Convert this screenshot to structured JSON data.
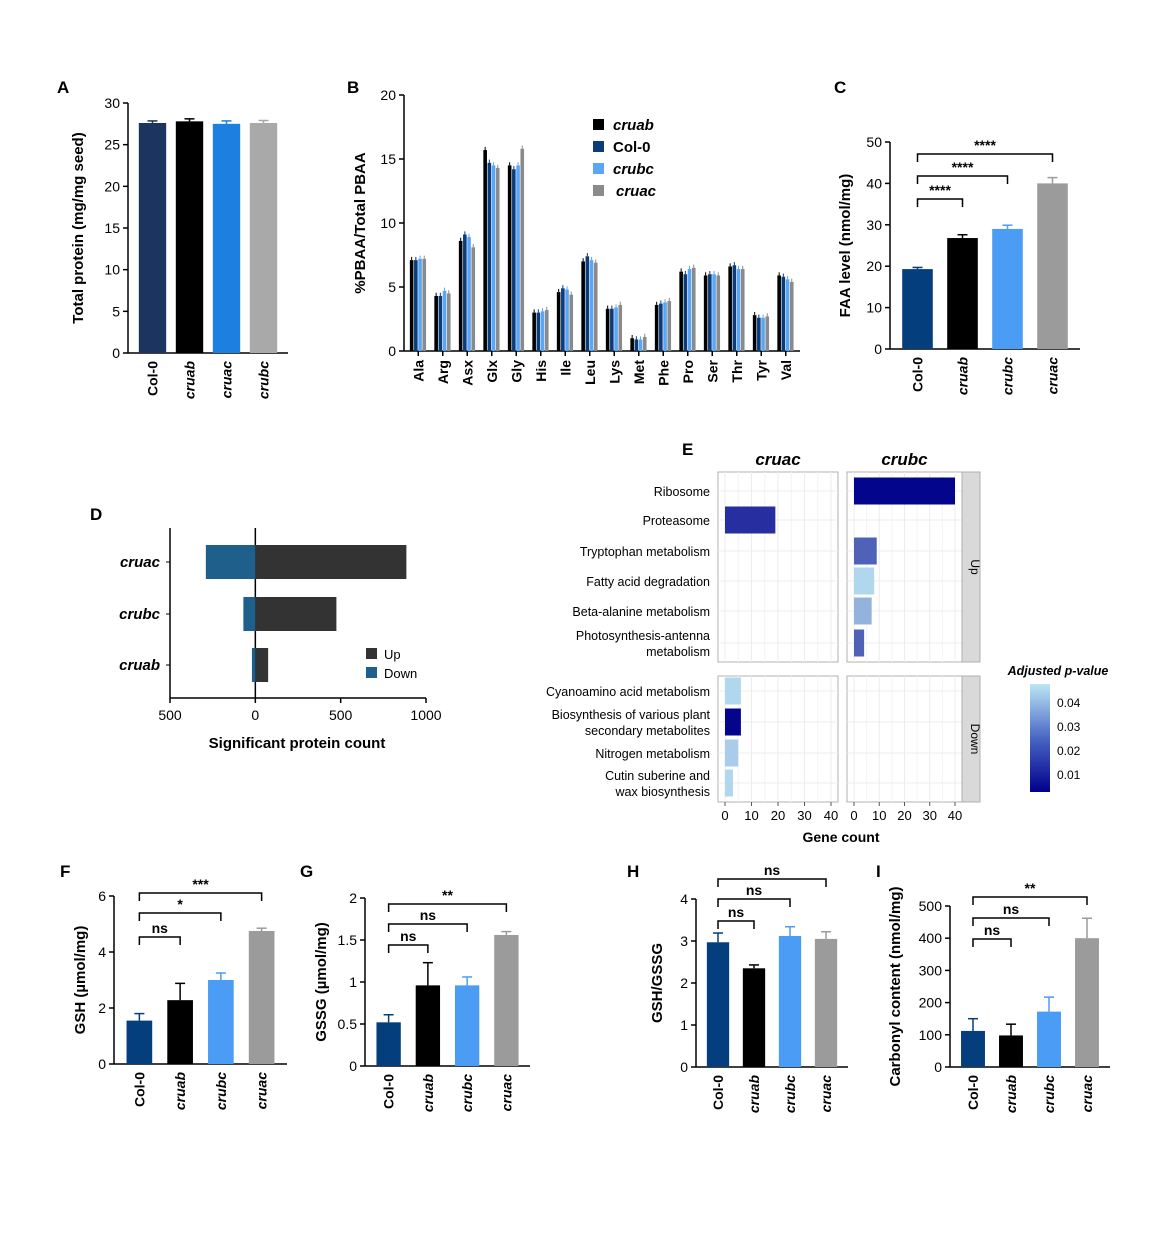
{
  "colors": {
    "Col-0": "#053e7c",
    "cruab": "#000000",
    "crubc": "#4a9cf5",
    "cruac": "#9b9b9b",
    "panelA_Col-0": "#1c355e",
    "panelA_cruac": "#1d7fe0",
    "panelA_crubc": "#a9a9a9",
    "panelB_cruab": "#000000",
    "panelB_Col-0": "#0a3b7a",
    "panelB_crubc": "#5aa6f5",
    "panelB_cruac": "#8a8a8a",
    "D_up": "#333333",
    "D_down": "#1f5f8b",
    "E_low": "#00008b",
    "E_high": "#bde6f5",
    "D_up_legend": "#333333"
  },
  "chart_data": [
    {
      "panel": "A",
      "type": "bar",
      "ylabel": "Total protein (mg/mg seed)",
      "ylim": [
        0,
        30
      ],
      "yticks": [
        0,
        5,
        10,
        15,
        20,
        25,
        30
      ],
      "categories": [
        "Col-0",
        "cruab",
        "cruac",
        "crubc"
      ],
      "values": [
        27.6,
        27.8,
        27.5,
        27.6
      ],
      "errors": [
        0.25,
        0.3,
        0.35,
        0.3
      ],
      "bar_colors": [
        "#1c355e",
        "#000000",
        "#1d7fe0",
        "#a9a9a9"
      ]
    },
    {
      "panel": "B",
      "type": "bar",
      "ylabel": "%PBAA/Total PBAA",
      "ylim": [
        0,
        20
      ],
      "yticks": [
        0,
        5,
        10,
        15,
        20
      ],
      "categories": [
        "Ala",
        "Arg",
        "Asx",
        "Glx",
        "Gly",
        "His",
        "Ile",
        "Leu",
        "Lys",
        "Met",
        "Phe",
        "Pro",
        "Ser",
        "Thr",
        "Tyr",
        "Val"
      ],
      "series": [
        {
          "name": "cruab",
          "color": "#000000",
          "values": [
            7.1,
            4.3,
            8.6,
            15.7,
            14.5,
            3.0,
            4.6,
            7.0,
            3.3,
            1.0,
            3.6,
            6.2,
            5.9,
            6.6,
            2.8,
            5.9
          ]
        },
        {
          "name": "Col-0",
          "color": "#0a3b7a",
          "values": [
            7.1,
            4.3,
            9.1,
            14.7,
            14.2,
            3.0,
            4.9,
            7.4,
            3.3,
            0.9,
            3.7,
            6.0,
            6.0,
            6.7,
            2.6,
            5.8
          ]
        },
        {
          "name": "crubc",
          "color": "#5aa6f5",
          "values": [
            7.2,
            4.7,
            8.9,
            14.5,
            14.5,
            3.1,
            4.8,
            7.1,
            3.4,
            0.9,
            3.8,
            6.4,
            6.0,
            6.4,
            2.6,
            5.6
          ]
        },
        {
          "name": "cruac",
          "color": "#8a8a8a",
          "values": [
            7.2,
            4.5,
            8.1,
            14.3,
            15.8,
            3.2,
            4.4,
            6.9,
            3.6,
            1.1,
            3.9,
            6.5,
            5.9,
            6.4,
            2.7,
            5.4
          ]
        }
      ],
      "legend": [
        "cruab",
        "Col-0",
        "crubc",
        "cruac"
      ]
    },
    {
      "panel": "C",
      "type": "bar",
      "ylabel": "FAA level (nmol/mg)",
      "ylim": [
        0,
        50
      ],
      "yticks": [
        0,
        10,
        20,
        30,
        40,
        50
      ],
      "categories": [
        "Col-0",
        "cruab",
        "crubc",
        "cruac"
      ],
      "values": [
        19.3,
        26.8,
        29.0,
        40.0
      ],
      "errors": [
        0.4,
        0.8,
        0.9,
        1.4
      ],
      "bar_colors": [
        "#053e7c",
        "#000000",
        "#4a9cf5",
        "#9b9b9b"
      ],
      "significance": [
        {
          "from": 0,
          "to": 1,
          "label": "****"
        },
        {
          "from": 0,
          "to": 2,
          "label": "****"
        },
        {
          "from": 0,
          "to": 3,
          "label": "****"
        }
      ]
    },
    {
      "panel": "D",
      "type": "bar",
      "orientation": "horizontal",
      "xlabel": "Significant protein count",
      "xlim": [
        -500,
        1000
      ],
      "xticks": [
        -500,
        0,
        500,
        1000
      ],
      "xticklabels": [
        "500",
        "0",
        "500",
        "1000"
      ],
      "categories": [
        "cruac",
        "crubc",
        "cruab"
      ],
      "series": [
        {
          "name": "Up",
          "color": "#333333",
          "values": [
            885,
            475,
            75
          ]
        },
        {
          "name": "Down",
          "color": "#1f5f8b",
          "values": [
            -290,
            -70,
            -20
          ]
        }
      ],
      "legend": [
        "Up",
        "Down"
      ]
    },
    {
      "panel": "E",
      "type": "bar",
      "orientation": "horizontal",
      "xlabel": "Gene count",
      "xlim": [
        0,
        40
      ],
      "xticks": [
        0,
        10,
        20,
        30,
        40
      ],
      "columns": [
        "cruac",
        "crubc"
      ],
      "rows": [
        "Up",
        "Down"
      ],
      "legend_title": "Adjusted p-value",
      "legend_ticks": [
        0.04,
        0.03,
        0.02,
        0.01
      ],
      "p_range": [
        0.003,
        0.048
      ],
      "up_terms": [
        "Ribosome",
        "Proteasome",
        "Tryptophan metabolism",
        "Fatty acid degradation",
        "Beta-alanine metabolism",
        "Photosynthesis-antenna metabolism"
      ],
      "down_terms": [
        "Cyanoamino acid metabolism",
        "Biosynthesis of various plant secondary metabolites",
        "Nitrogen metabolism",
        "Cutin suberine and wax biosynthesis"
      ],
      "bars": [
        {
          "column": "cruac",
          "row": "Up",
          "term": "Proteasome",
          "count": 19,
          "p": 0.012
        },
        {
          "column": "crubc",
          "row": "Up",
          "term": "Ribosome",
          "count": 40,
          "p": 0.004
        },
        {
          "column": "crubc",
          "row": "Up",
          "term": "Tryptophan metabolism",
          "count": 9,
          "p": 0.022
        },
        {
          "column": "crubc",
          "row": "Up",
          "term": "Fatty acid degradation",
          "count": 8,
          "p": 0.045
        },
        {
          "column": "crubc",
          "row": "Up",
          "term": "Beta-alanine metabolism",
          "count": 7,
          "p": 0.038
        },
        {
          "column": "crubc",
          "row": "Up",
          "term": "Photosynthesis-antenna metabolism",
          "count": 4,
          "p": 0.022
        },
        {
          "column": "cruac",
          "row": "Down",
          "term": "Cyanoamino acid metabolism",
          "count": 6,
          "p": 0.045
        },
        {
          "column": "cruac",
          "row": "Down",
          "term": "Biosynthesis of various plant secondary metabolites",
          "count": 6,
          "p": 0.004
        },
        {
          "column": "cruac",
          "row": "Down",
          "term": "Nitrogen metabolism",
          "count": 5,
          "p": 0.043
        },
        {
          "column": "cruac",
          "row": "Down",
          "term": "Cutin suberine and wax biosynthesis",
          "count": 3,
          "p": 0.045
        }
      ]
    },
    {
      "panel": "F",
      "type": "bar",
      "ylabel": "GSH (µmol/mg)",
      "ylim": [
        0,
        6
      ],
      "yticks": [
        0,
        2,
        4,
        6
      ],
      "categories": [
        "Col-0",
        "cruab",
        "crubc",
        "cruac"
      ],
      "values": [
        1.55,
        2.28,
        3.0,
        4.75
      ],
      "errors": [
        0.25,
        0.6,
        0.25,
        0.1
      ],
      "bar_colors": [
        "#053e7c",
        "#000000",
        "#4a9cf5",
        "#9b9b9b"
      ],
      "significance": [
        {
          "from": 0,
          "to": 1,
          "label": "ns"
        },
        {
          "from": 0,
          "to": 2,
          "label": "*"
        },
        {
          "from": 0,
          "to": 3,
          "label": "***"
        }
      ]
    },
    {
      "panel": "G",
      "type": "bar",
      "ylabel": "GSSG (µmol/mg)",
      "ylim": [
        0,
        2
      ],
      "yticks": [
        0,
        0.5,
        1,
        1.5,
        2
      ],
      "categories": [
        "Col-0",
        "cruab",
        "crubc",
        "cruac"
      ],
      "values": [
        0.52,
        0.96,
        0.96,
        1.56
      ],
      "errors": [
        0.09,
        0.27,
        0.1,
        0.04
      ],
      "bar_colors": [
        "#053e7c",
        "#000000",
        "#4a9cf5",
        "#9b9b9b"
      ],
      "significance": [
        {
          "from": 0,
          "to": 1,
          "label": "ns"
        },
        {
          "from": 0,
          "to": 2,
          "label": "ns"
        },
        {
          "from": 0,
          "to": 3,
          "label": "**"
        }
      ]
    },
    {
      "panel": "H",
      "type": "bar",
      "ylabel": "GSH/GSSG",
      "ylim": [
        0,
        4
      ],
      "yticks": [
        0,
        1,
        2,
        3,
        4
      ],
      "categories": [
        "Col-0",
        "cruab",
        "crubc",
        "cruac"
      ],
      "values": [
        2.97,
        2.35,
        3.12,
        3.05
      ],
      "errors": [
        0.22,
        0.08,
        0.22,
        0.17
      ],
      "bar_colors": [
        "#053e7c",
        "#000000",
        "#4a9cf5",
        "#9b9b9b"
      ],
      "significance": [
        {
          "from": 0,
          "to": 1,
          "label": "ns"
        },
        {
          "from": 0,
          "to": 2,
          "label": "ns"
        },
        {
          "from": 0,
          "to": 3,
          "label": "ns"
        }
      ]
    },
    {
      "panel": "I",
      "type": "bar",
      "ylabel": "Carbonyl content (nmol/mg)",
      "ylim": [
        0,
        500
      ],
      "yticks": [
        0,
        100,
        200,
        300,
        400,
        500
      ],
      "categories": [
        "Col-0",
        "cruab",
        "crubc",
        "cruac"
      ],
      "values": [
        112,
        98,
        172,
        400
      ],
      "errors": [
        38,
        35,
        45,
        62
      ],
      "bar_colors": [
        "#053e7c",
        "#000000",
        "#4a9cf5",
        "#9b9b9b"
      ],
      "significance": [
        {
          "from": 0,
          "to": 1,
          "label": "ns"
        },
        {
          "from": 0,
          "to": 2,
          "label": "ns"
        },
        {
          "from": 0,
          "to": 3,
          "label": "**"
        }
      ]
    }
  ]
}
